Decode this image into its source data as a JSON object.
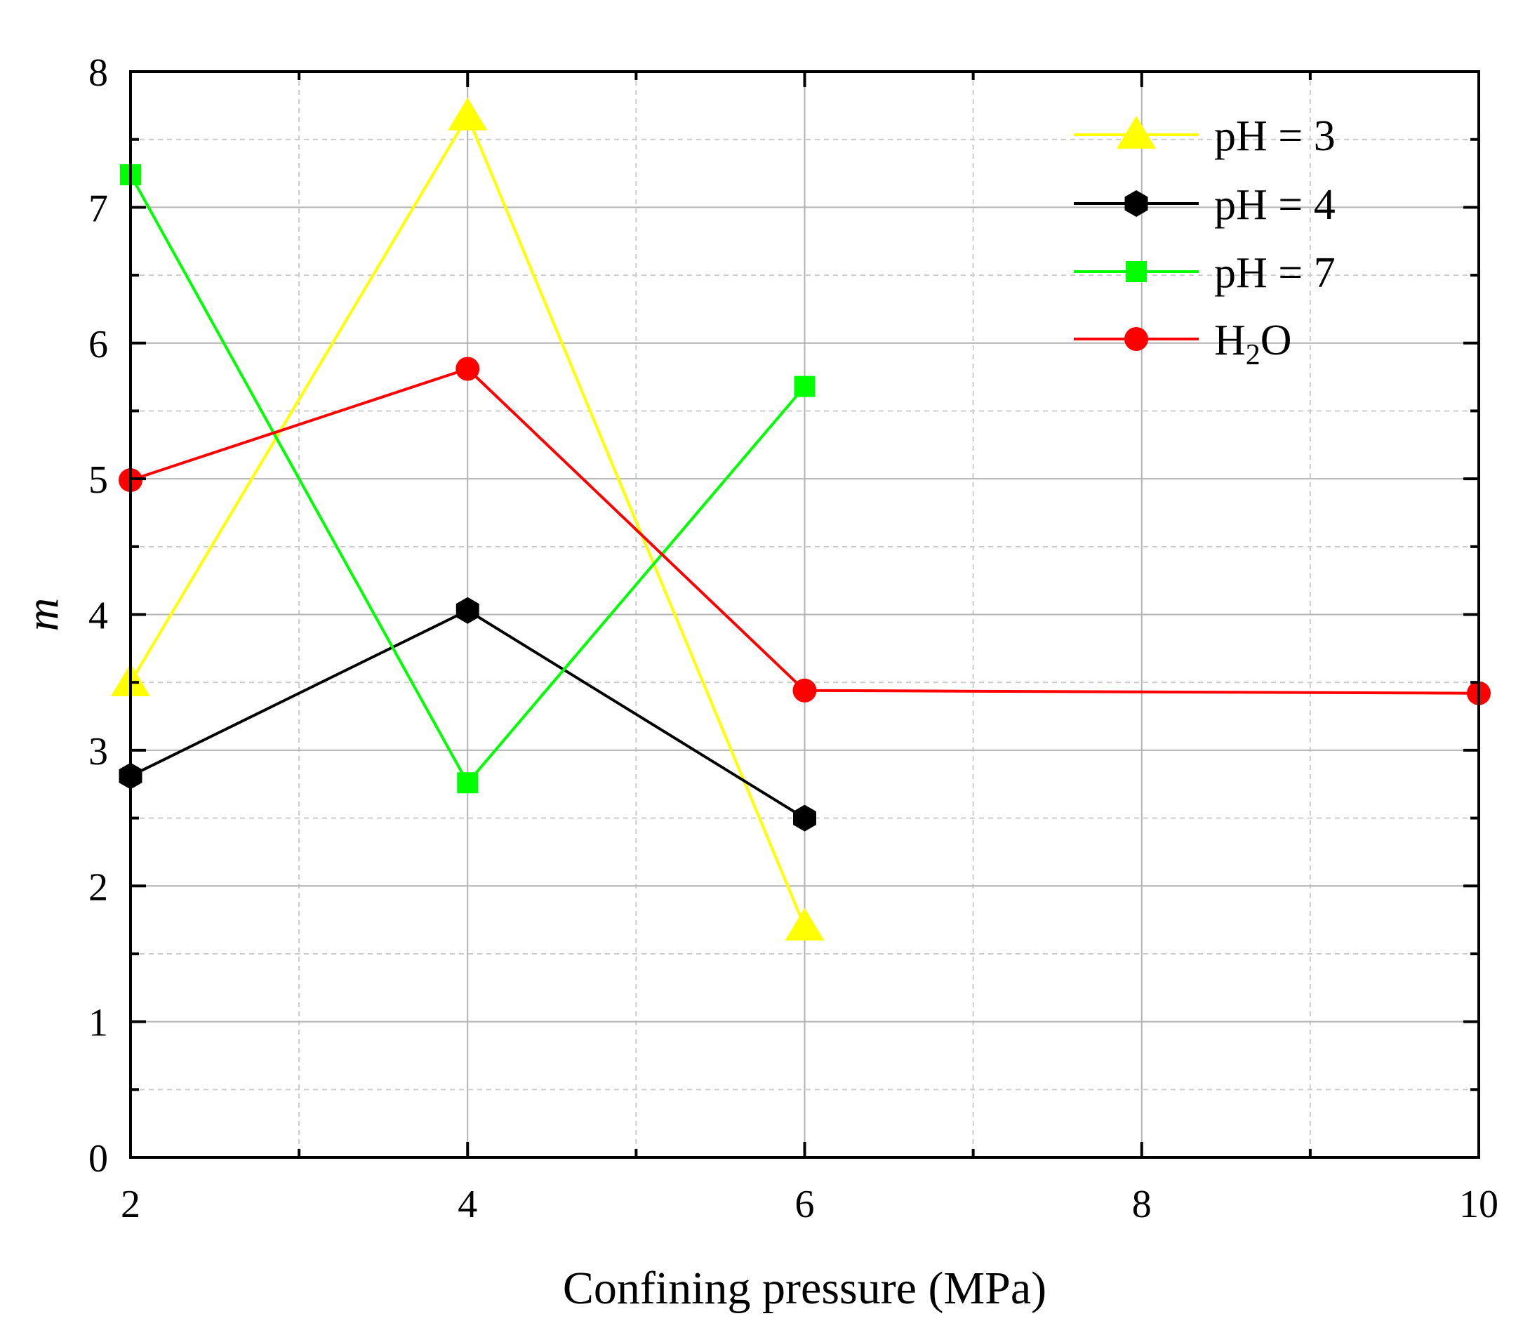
{
  "chart_data": {
    "type": "line",
    "title": "",
    "xlabel": "Confining pressure (MPa)",
    "ylabel": "m",
    "xlim": [
      2,
      10
    ],
    "ylim": [
      0,
      8
    ],
    "xticks": [
      2,
      4,
      6,
      8,
      10
    ],
    "yticks": [
      0,
      1,
      2,
      3,
      4,
      5,
      6,
      7,
      8
    ],
    "grid": true,
    "legend_position": "top-right",
    "series": [
      {
        "name": "pH = 3",
        "subscript": "",
        "suffix": "",
        "color": "#ffff00",
        "marker": "triangle",
        "x": [
          2,
          4,
          6
        ],
        "values": [
          3.5,
          7.67,
          1.7
        ]
      },
      {
        "name": "pH = 4",
        "subscript": "",
        "suffix": "",
        "color": "#000000",
        "marker": "hexagon",
        "x": [
          2,
          4,
          6
        ],
        "values": [
          2.81,
          4.03,
          2.5
        ]
      },
      {
        "name": "pH = 7",
        "subscript": "",
        "suffix": "",
        "color": "#00ff00",
        "marker": "square",
        "x": [
          2,
          4,
          6
        ],
        "values": [
          7.24,
          2.76,
          5.68
        ]
      },
      {
        "name": "H",
        "subscript": "2",
        "suffix": "O",
        "color": "#ff0000",
        "marker": "circle",
        "x": [
          2,
          4,
          6,
          10
        ],
        "values": [
          4.99,
          5.81,
          3.44,
          3.42
        ]
      }
    ]
  }
}
